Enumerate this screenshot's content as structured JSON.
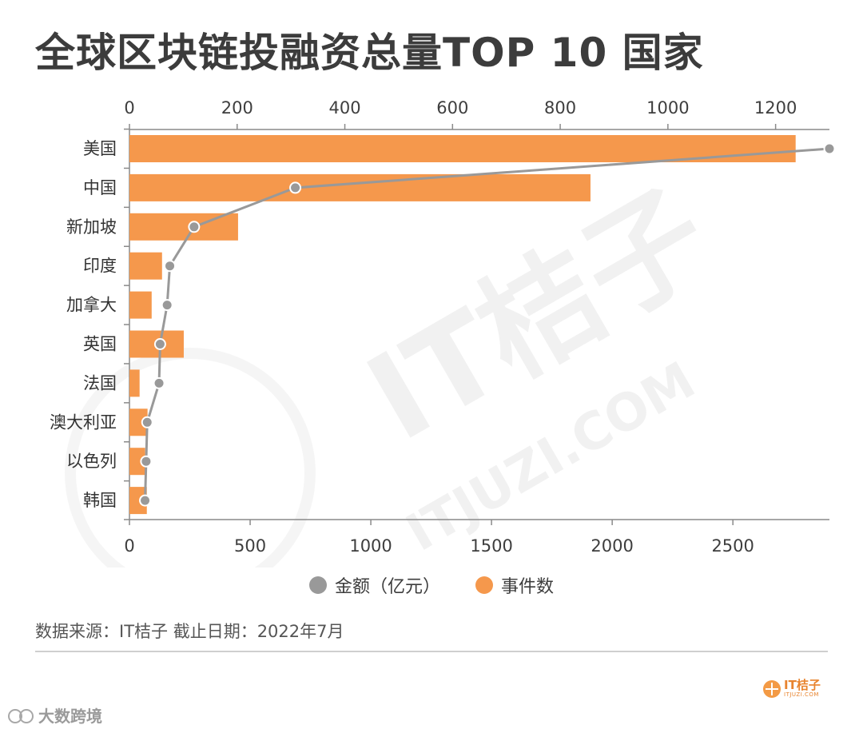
{
  "header": {
    "title": "全球区块链投融资总量TOP 10 国家"
  },
  "chart_data": {
    "type": "bar",
    "orientation": "horizontal",
    "categories": [
      "美国",
      "中国",
      "新加坡",
      "印度",
      "加拿大",
      "英国",
      "法国",
      "澳大利亚",
      "以色列",
      "韩国"
    ],
    "series": [
      {
        "name": "金额（亿元）",
        "type": "line",
        "axis": "top",
        "color": "#999999",
        "values": [
          1300,
          308,
          120,
          75,
          70,
          57,
          55,
          33,
          31,
          29
        ]
      },
      {
        "name": "事件数",
        "type": "bar",
        "axis": "bottom",
        "color": "#f5984c",
        "values": [
          2760,
          1910,
          450,
          135,
          92,
          225,
          42,
          75,
          65,
          72
        ]
      }
    ],
    "top_axis": {
      "range": [
        0,
        1300
      ],
      "ticks": [
        0,
        200,
        400,
        600,
        800,
        1000,
        1200
      ]
    },
    "bottom_axis": {
      "range": [
        0,
        2900
      ],
      "ticks": [
        0,
        500,
        1000,
        1500,
        2000,
        2500
      ]
    },
    "legend_position": "bottom"
  },
  "legend": {
    "items": [
      {
        "label": "金额（亿元）",
        "color": "#999999"
      },
      {
        "label": "事件数",
        "color": "#f5984c"
      }
    ]
  },
  "footer": {
    "source": "数据来源：IT桔子 截止日期：2022年7月",
    "logo_name": "IT桔子",
    "logo_sub": "ITJUZI.COM",
    "watermark_brand": "IT桔子",
    "watermark_url": "ITJUZI.COM",
    "corner_mark": "大数跨境"
  }
}
